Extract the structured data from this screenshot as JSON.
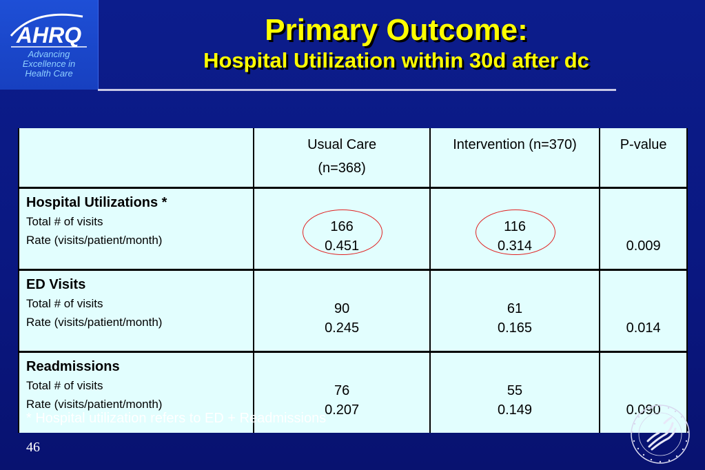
{
  "logo": {
    "wordmark": "AHRQ",
    "tagline": [
      "Advancing",
      "Excellence in",
      "Health Care"
    ]
  },
  "title": {
    "main": "Primary Outcome:",
    "sub": "Hospital Utilization within 30d after dc"
  },
  "table": {
    "headers": {
      "col1_line1": "Usual Care",
      "col1_line2": "(n=368)",
      "col2": "Intervention (n=370)",
      "col3": "P-value"
    },
    "rows": [
      {
        "group": "Hospital Utilizations *",
        "label1": "Total # of visits",
        "label2": "Rate (visits/patient/month)",
        "usual_total": "166",
        "usual_rate": "0.451",
        "int_total": "116",
        "int_rate": "0.314",
        "p": "0.009"
      },
      {
        "group": "ED Visits",
        "label1": "Total # of visits",
        "label2": "Rate (visits/patient/month)",
        "usual_total": "90",
        "usual_rate": "0.245",
        "int_total": "61",
        "int_rate": "0.165",
        "p": "0.014"
      },
      {
        "group": "Readmissions",
        "label1": "Total # of visits",
        "label2": "Rate (visits/patient/month)",
        "usual_total": "76",
        "usual_rate": "0.207",
        "int_total": "55",
        "int_rate": "0.149",
        "p": "0.090"
      }
    ]
  },
  "footnote": "* Hospital utilization refers to ED + Readmissions",
  "page_number": "46",
  "colors": {
    "background": "#0c1d8c",
    "title": "#ffff00",
    "table_fill": "#e2fefe",
    "highlight_circle": "#e02020",
    "logo_blue": "#1e4fd6"
  }
}
